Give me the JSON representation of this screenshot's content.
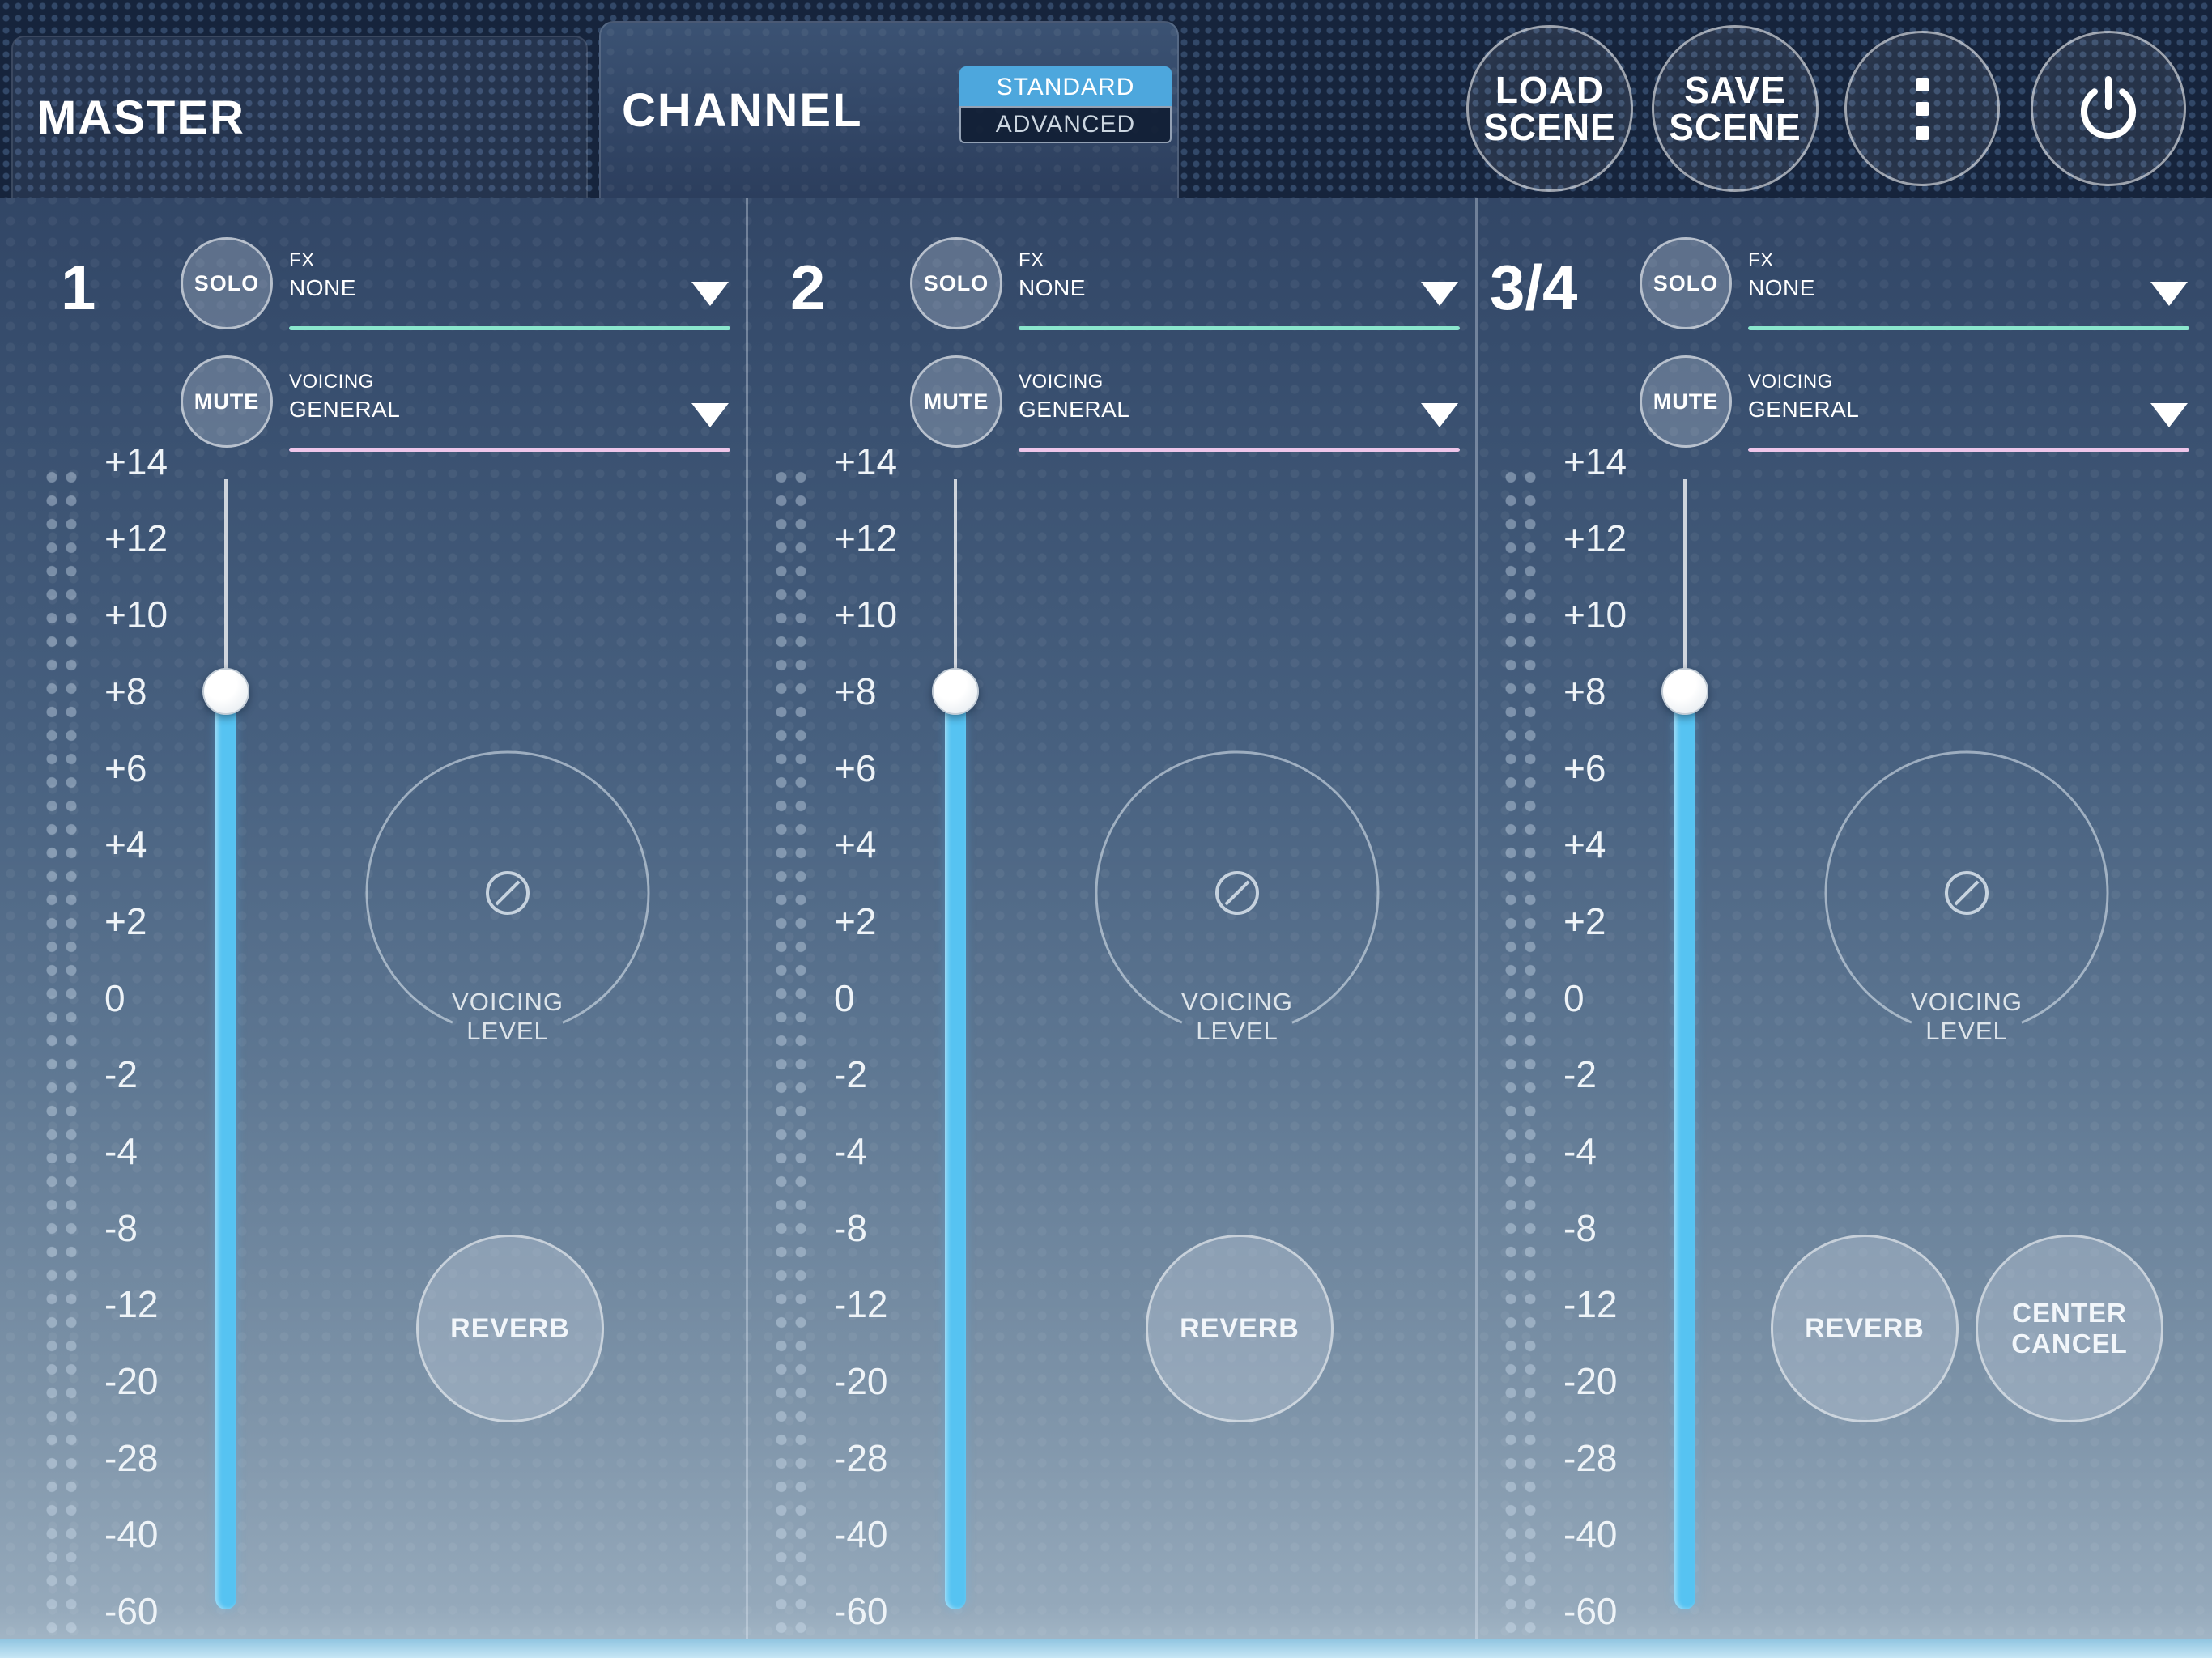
{
  "header": {
    "master_tab": "MASTER",
    "channel_tab": "CHANNEL",
    "mode": {
      "standard": "STANDARD",
      "advanced": "ADVANCED",
      "selected": "STANDARD"
    },
    "load_scene": [
      "LOAD",
      "SCENE"
    ],
    "save_scene": [
      "SAVE",
      "SCENE"
    ]
  },
  "fader_scale": [
    "+14",
    "+12",
    "+10",
    "+8",
    "+6",
    "+4",
    "+2",
    "0",
    "-2",
    "-4",
    "-8",
    "-12",
    "-20",
    "-28",
    "-40",
    "-60"
  ],
  "channels": [
    {
      "id": "1",
      "solo": "SOLO",
      "mute": "MUTE",
      "fx_label": "FX",
      "fx_value": "NONE",
      "voicing_label": "VOICING",
      "voicing_value": "GENERAL",
      "fader_value": "+8",
      "knob_label": [
        "VOICING",
        "LEVEL"
      ],
      "reverb": "REVERB"
    },
    {
      "id": "2",
      "solo": "SOLO",
      "mute": "MUTE",
      "fx_label": "FX",
      "fx_value": "NONE",
      "voicing_label": "VOICING",
      "voicing_value": "GENERAL",
      "fader_value": "+8",
      "knob_label": [
        "VOICING",
        "LEVEL"
      ],
      "reverb": "REVERB"
    },
    {
      "id": "3/4",
      "solo": "SOLO",
      "mute": "MUTE",
      "fx_label": "FX",
      "fx_value": "NONE",
      "voicing_label": "VOICING",
      "voicing_value": "GENERAL",
      "fader_value": "+8",
      "knob_label": [
        "VOICING",
        "LEVEL"
      ],
      "reverb": "REVERB",
      "center_cancel": [
        "CENTER",
        "CANCEL"
      ]
    }
  ],
  "colors": {
    "fx_underline": "#8ae6cd",
    "voicing_underline": "#eec6ea",
    "fader_track": "#56c3f2",
    "mode_selected": "#4da7dd"
  }
}
